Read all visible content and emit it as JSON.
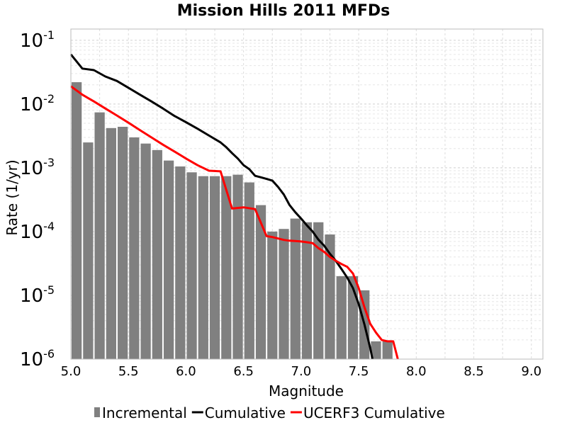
{
  "chart_data": {
    "type": "bar",
    "title": "Mission Hills 2011 MFDs",
    "xlabel": "Magnitude",
    "ylabel": "Rate (1/yr)",
    "xlim": [
      5.0,
      9.1
    ],
    "ylim": [
      1e-06,
      0.15
    ],
    "yscale": "log",
    "grid": true,
    "legend_position": "bottom",
    "x_ticks": [
      "5.0",
      "5.5",
      "6.0",
      "6.5",
      "7.0",
      "7.5",
      "8.0",
      "8.5",
      "9.0"
    ],
    "y_ticks": [
      {
        "base": "10",
        "exp": "-1",
        "value": 0.1
      },
      {
        "base": "10",
        "exp": "-2",
        "value": 0.01
      },
      {
        "base": "10",
        "exp": "-3",
        "value": 0.001
      },
      {
        "base": "10",
        "exp": "-4",
        "value": 0.0001
      },
      {
        "base": "10",
        "exp": "-5",
        "value": 1e-05
      },
      {
        "base": "10",
        "exp": "-6",
        "value": 1e-06
      }
    ],
    "series": [
      {
        "name": "Incremental",
        "type": "bar",
        "color": "#808080",
        "bin_width": 0.1,
        "x": [
          5.0,
          5.1,
          5.2,
          5.3,
          5.4,
          5.5,
          5.6,
          5.7,
          5.8,
          5.9,
          6.0,
          6.1,
          6.2,
          6.3,
          6.4,
          6.5,
          6.6,
          6.7,
          6.8,
          6.9,
          7.0,
          7.1,
          7.2,
          7.3,
          7.4,
          7.5,
          7.6,
          7.7
        ],
        "values": [
          0.022,
          0.0025,
          0.0074,
          0.0042,
          0.0044,
          0.003,
          0.0024,
          0.0019,
          0.0013,
          0.00105,
          0.00085,
          0.00074,
          0.00074,
          0.00074,
          0.00078,
          0.00059,
          0.00026,
          0.0001,
          0.00011,
          0.00016,
          0.00014,
          0.00014,
          9e-05,
          2e-05,
          2e-05,
          1.2e-05,
          1.9e-06,
          1.9e-06
        ]
      },
      {
        "name": "Cumulative",
        "type": "line",
        "color": "#000000",
        "x": [
          5.0,
          5.1,
          5.2,
          5.3,
          5.4,
          5.5,
          5.6,
          5.7,
          5.8,
          5.9,
          6.0,
          6.1,
          6.2,
          6.3,
          6.35,
          6.4,
          6.45,
          6.5,
          6.55,
          6.6,
          6.65,
          6.7,
          6.75,
          6.8,
          6.85,
          6.9,
          6.95,
          7.0,
          7.05,
          7.1,
          7.15,
          7.2,
          7.25,
          7.3,
          7.35,
          7.4,
          7.45,
          7.5,
          7.55,
          7.6,
          7.62
        ],
        "values": [
          0.06,
          0.036,
          0.034,
          0.027,
          0.023,
          0.018,
          0.014,
          0.011,
          0.0085,
          0.0065,
          0.0052,
          0.0041,
          0.0032,
          0.0025,
          0.0021,
          0.0017,
          0.0014,
          0.0011,
          0.00095,
          0.00075,
          0.00071,
          0.00067,
          0.00063,
          0.0005,
          0.00038,
          0.00026,
          0.0002,
          0.00016,
          0.000125,
          0.0001,
          7.5e-05,
          6e-05,
          4.5e-05,
          3.5e-05,
          2.6e-05,
          1.9e-05,
          1.3e-05,
          7.3e-06,
          3.5e-06,
          1.5e-06,
          1e-06
        ]
      },
      {
        "name": "UCERF3 Cumulative",
        "type": "line",
        "color": "#ff0000",
        "x": [
          5.0,
          5.1,
          5.2,
          5.3,
          5.4,
          5.5,
          5.6,
          5.7,
          5.8,
          5.9,
          6.0,
          6.1,
          6.2,
          6.3,
          6.4,
          6.5,
          6.6,
          6.7,
          6.75,
          6.8,
          6.85,
          6.9,
          6.95,
          7.0,
          7.05,
          7.1,
          7.15,
          7.2,
          7.25,
          7.3,
          7.35,
          7.4,
          7.45,
          7.5,
          7.55,
          7.6,
          7.65,
          7.7,
          7.75,
          7.8,
          7.84
        ],
        "values": [
          0.019,
          0.014,
          0.011,
          0.0085,
          0.0066,
          0.0051,
          0.0039,
          0.003,
          0.0023,
          0.0018,
          0.0014,
          0.0011,
          0.0009,
          0.00088,
          0.00023,
          0.00024,
          0.000225,
          8.5e-05,
          8.2e-05,
          7.8e-05,
          7.4e-05,
          7.2e-05,
          7.1e-05,
          7e-05,
          6.8e-05,
          6.6e-05,
          5.5e-05,
          4.8e-05,
          4e-05,
          3.5e-05,
          3.1e-05,
          2.8e-05,
          2.2e-05,
          1.3e-05,
          6.5e-06,
          3.6e-06,
          2.6e-06,
          2e-06,
          1.9e-06,
          1.9e-06,
          1e-06
        ]
      }
    ]
  }
}
